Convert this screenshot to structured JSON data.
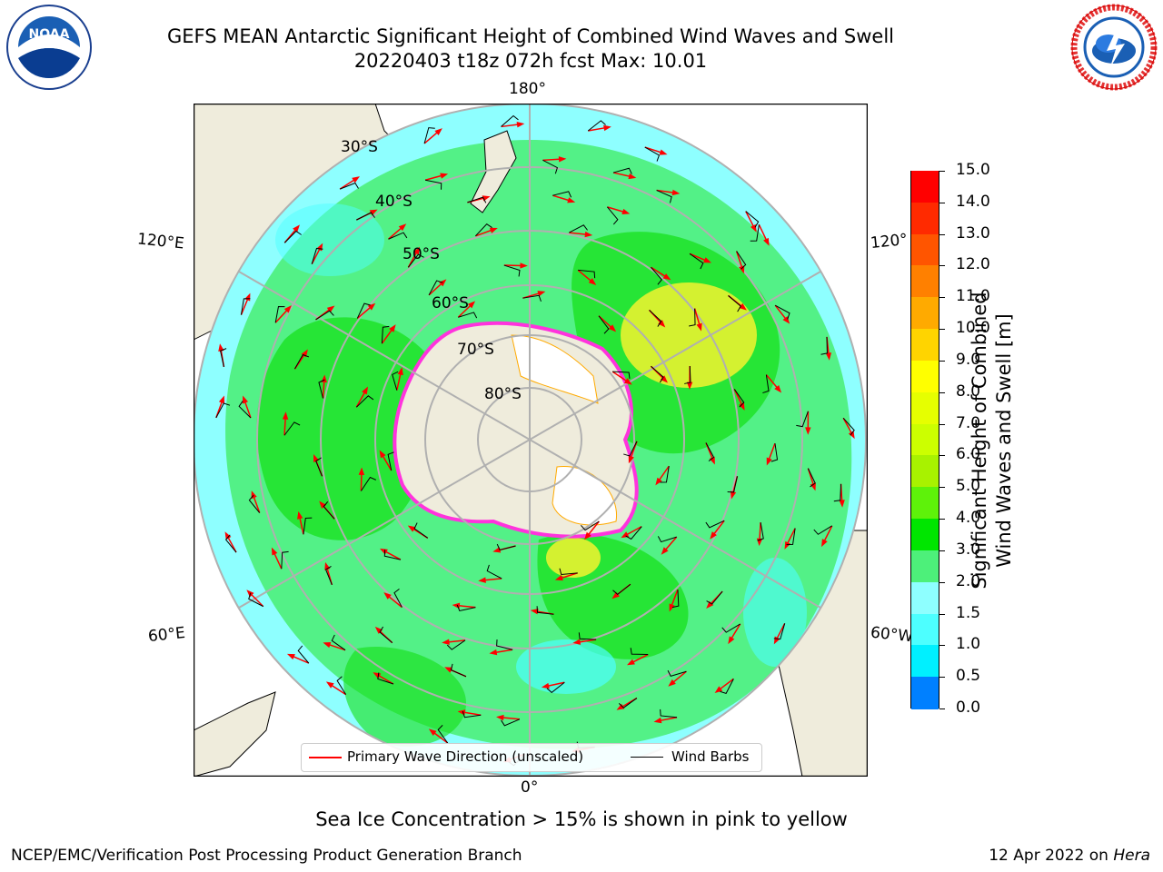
{
  "title": {
    "line1": "GEFS MEAN Antarctic Significant Height of Combined Wind Waves and Swell",
    "line2": "20220403 t18z 072h fcst   Max: 10.01"
  },
  "logos": {
    "left": {
      "name": "noaa-logo",
      "text": "NOAA"
    },
    "right": {
      "name": "nws-logo",
      "text": "NATIONAL WEATHER SERVICE"
    }
  },
  "map": {
    "projection": "south-polar-stereographic",
    "lon_labels": {
      "top": "180°",
      "bottom": "0°",
      "left_upper": "120°E",
      "left_lower": "60°E",
      "right_upper": "120°",
      "right_lower": "60°W"
    },
    "lat_labels": [
      "30°S",
      "40°S",
      "50°S",
      "60°S",
      "70°S",
      "80°S"
    ],
    "colors": {
      "land": "#efecdc",
      "ocean_low": "#8effff",
      "ocean_mid": "#4df07a",
      "ocean_high": "#14e014",
      "peak": "#e8f230",
      "antarctica": "#ffffff",
      "ice_edge": "#ff33dd",
      "wind_arrow": "#ff0000",
      "grid": "#b0b0b0"
    }
  },
  "colorbar": {
    "label": "Significant Height of Combined Wind Waves and Swell [m]",
    "label_line1": "Significant Height of Combined",
    "label_line2": "Wind Waves and Swell [m]",
    "ticks": [
      "15.0",
      "14.0",
      "13.0",
      "12.0",
      "11.0",
      "10.0",
      "9.0",
      "8.0",
      "7.0",
      "6.0",
      "5.0",
      "4.0",
      "3.0",
      "2.0",
      "1.5",
      "1.0",
      "0.5",
      "0.0"
    ],
    "colors": [
      "#ff0000",
      "#ff2a00",
      "#ff5500",
      "#ff8000",
      "#ffaa00",
      "#ffd400",
      "#ffff00",
      "#e6ff00",
      "#ccff00",
      "#a8f200",
      "#5ef20a",
      "#00e600",
      "#4df07a",
      "#8effff",
      "#4dffff",
      "#00f0ff",
      "#0080ff",
      "#0000ff"
    ]
  },
  "legend": {
    "item1": "Primary Wave Direction (unscaled)",
    "item2": "Wind Barbs"
  },
  "footer": {
    "note": "Sea Ice Concentration > 15% is shown in pink to yellow",
    "credit": "NCEP/EMC/Verification Post Processing Product Generation Branch",
    "date": "12 Apr 2022 on",
    "machine": "Hera"
  }
}
